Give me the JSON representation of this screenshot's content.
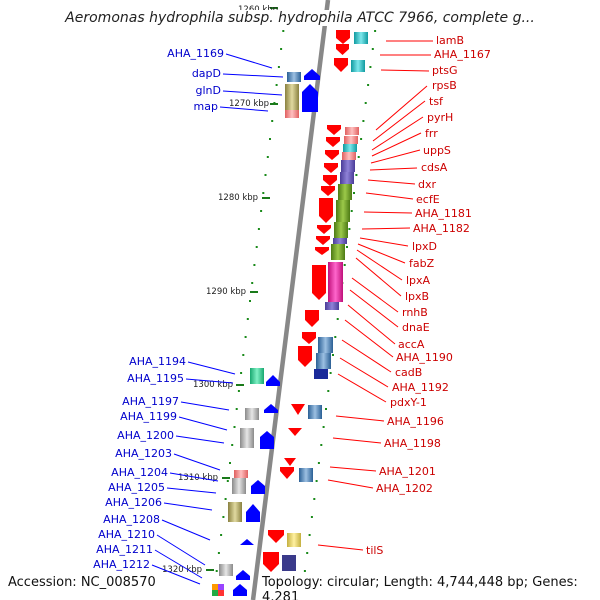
{
  "header": {
    "title": "Aeromonas hydrophila subsp. hydrophila ATCC 7966, complete g..."
  },
  "footer": {
    "accession": "Accession: NC_008570",
    "topology": "Topology: circular; Length: 4,744,448 bp; Genes: 4,281"
  },
  "ticks": [
    {
      "label": "1260 kbp"
    },
    {
      "label": "1270 kbp"
    },
    {
      "label": "1280 kbp"
    },
    {
      "label": "1290 kbp"
    },
    {
      "label": "1300 kbp"
    },
    {
      "label": "1310 kbp"
    },
    {
      "label": "1320 kbp"
    }
  ],
  "left_labels": [
    "AHA_1169",
    "dapD",
    "glnD",
    "map",
    "AHA_1194",
    "AHA_1195",
    "AHA_1197",
    "AHA_1199",
    "AHA_1200",
    "AHA_1203",
    "AHA_1204",
    "AHA_1205",
    "AHA_1206",
    "AHA_1208",
    "AHA_1210",
    "AHA_1211",
    "AHA_1212"
  ],
  "right_labels": [
    "lamB",
    "AHA_1167",
    "ptsG",
    "rpsB",
    "tsf",
    "pyrH",
    "frr",
    "uppS",
    "cdsA",
    "dxr",
    "ecfE",
    "AHA_1181",
    "AHA_1182",
    "lpxD",
    "fabZ",
    "lpxA",
    "lpxB",
    "rnhB",
    "dnaE",
    "accA",
    "AHA_1190",
    "cadB",
    "AHA_1192",
    "pdxY-1",
    "AHA_1196",
    "AHA_1198",
    "AHA_1201",
    "AHA_1202",
    "tilS"
  ],
  "colors": {
    "forward_feature": "#0000ff",
    "reverse_feature": "#ff0000",
    "backbone": "#888888",
    "tick": "#008000",
    "left_label": "#0000cc",
    "right_label": "#cc0000"
  }
}
